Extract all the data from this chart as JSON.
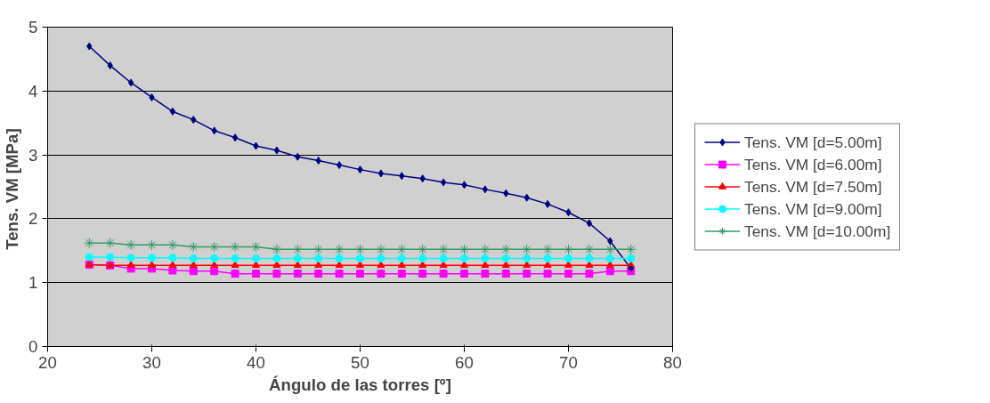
{
  "chart_data": {
    "type": "line",
    "xlabel": "Ángulo de las torres [º]",
    "ylabel": "Tens. VM  [MPa]",
    "x": [
      24,
      26,
      28,
      30,
      32,
      34,
      36,
      38,
      40,
      42,
      44,
      46,
      48,
      50,
      52,
      54,
      56,
      58,
      60,
      62,
      64,
      66,
      68,
      70,
      72,
      74,
      76
    ],
    "series": [
      {
        "name": "Tens. VM [d=5.00m]",
        "color": "#000080",
        "marker": "diamond",
        "values": [
          4.7,
          4.4,
          4.13,
          3.9,
          3.68,
          3.55,
          3.38,
          3.27,
          3.14,
          3.07,
          2.97,
          2.91,
          2.84,
          2.77,
          2.71,
          2.67,
          2.63,
          2.57,
          2.53,
          2.46,
          2.4,
          2.33,
          2.23,
          2.1,
          1.93,
          1.65,
          1.22
        ]
      },
      {
        "name": "Tens. VM [d=6.00m]",
        "color": "#ff00ff",
        "marker": "square",
        "values": [
          1.28,
          1.27,
          1.22,
          1.22,
          1.19,
          1.18,
          1.18,
          1.14,
          1.14,
          1.14,
          1.14,
          1.14,
          1.14,
          1.14,
          1.14,
          1.14,
          1.14,
          1.14,
          1.14,
          1.14,
          1.14,
          1.14,
          1.14,
          1.14,
          1.14,
          1.18,
          1.18
        ]
      },
      {
        "name": "Tens. VM [d=7.50m]",
        "color": "#ff0000",
        "marker": "triangle",
        "values": [
          1.28,
          1.27,
          1.27,
          1.27,
          1.27,
          1.27,
          1.27,
          1.27,
          1.27,
          1.27,
          1.27,
          1.27,
          1.27,
          1.27,
          1.27,
          1.27,
          1.27,
          1.27,
          1.27,
          1.27,
          1.27,
          1.27,
          1.27,
          1.27,
          1.27,
          1.27,
          1.27
        ]
      },
      {
        "name": "Tens. VM [d=9.00m]",
        "color": "#00ffff",
        "marker": "circle",
        "values": [
          1.4,
          1.4,
          1.39,
          1.39,
          1.39,
          1.38,
          1.38,
          1.38,
          1.38,
          1.38,
          1.38,
          1.38,
          1.38,
          1.38,
          1.38,
          1.38,
          1.38,
          1.38,
          1.38,
          1.38,
          1.38,
          1.38,
          1.38,
          1.38,
          1.38,
          1.38,
          1.38
        ]
      },
      {
        "name": "Tens. VM [d=10.00m]",
        "color": "#339966",
        "marker": "cross",
        "values": [
          1.62,
          1.62,
          1.59,
          1.59,
          1.59,
          1.56,
          1.56,
          1.56,
          1.56,
          1.52,
          1.52,
          1.52,
          1.52,
          1.52,
          1.52,
          1.52,
          1.52,
          1.52,
          1.52,
          1.52,
          1.52,
          1.52,
          1.52,
          1.52,
          1.52,
          1.52,
          1.52
        ]
      }
    ],
    "xlim": [
      20,
      80
    ],
    "xticks": [
      20,
      30,
      40,
      50,
      60,
      70,
      80
    ],
    "ylim": [
      0,
      5
    ],
    "yticks": [
      0,
      1,
      2,
      3,
      4,
      5
    ],
    "grid": "y",
    "legend": "right",
    "line_style": "solid"
  }
}
